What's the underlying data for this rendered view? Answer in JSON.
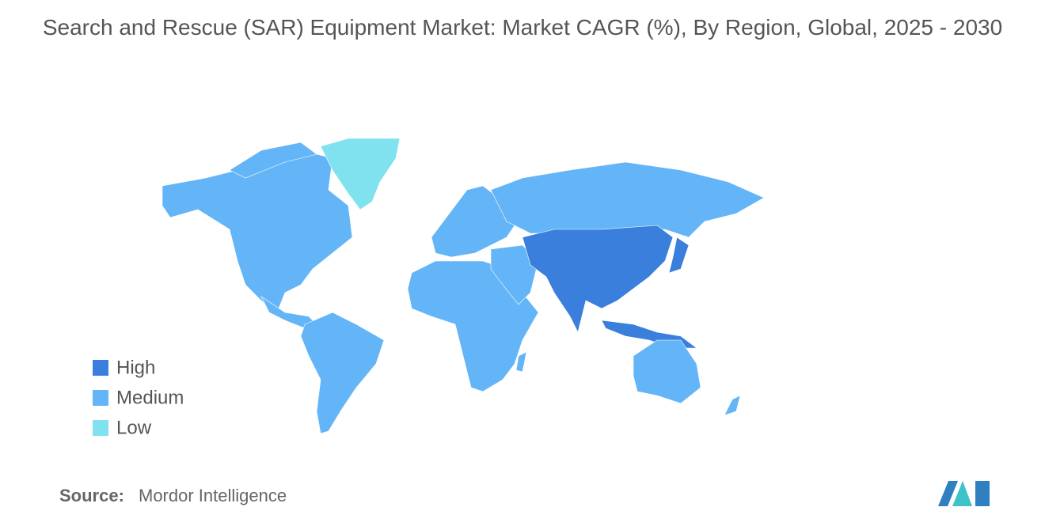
{
  "title": "Search and Rescue (SAR) Equipment Market: Market CAGR (%), By Region, Global, 2025 - 2030",
  "legend": [
    {
      "label": "High",
      "color": "#3a7fdc"
    },
    {
      "label": "Medium",
      "color": "#64b5f7"
    },
    {
      "label": "Low",
      "color": "#7fe2ee"
    }
  ],
  "source": {
    "label": "Source:",
    "text": "Mordor Intelligence"
  }
}
